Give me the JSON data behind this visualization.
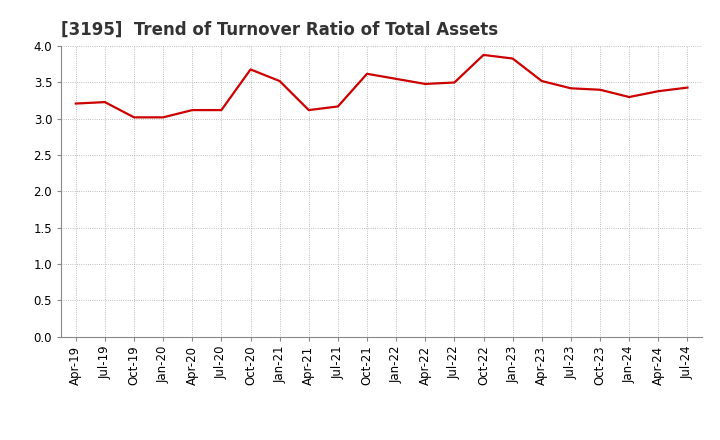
{
  "title": "[3195]  Trend of Turnover Ratio of Total Assets",
  "x_labels": [
    "Apr-19",
    "Jul-19",
    "Oct-19",
    "Jan-20",
    "Apr-20",
    "Jul-20",
    "Oct-20",
    "Jan-21",
    "Apr-21",
    "Jul-21",
    "Oct-21",
    "Jan-22",
    "Apr-22",
    "Jul-22",
    "Oct-22",
    "Jan-23",
    "Apr-23",
    "Jul-23",
    "Oct-23",
    "Jan-24",
    "Apr-24",
    "Jul-24"
  ],
  "y_values": [
    3.21,
    3.23,
    3.02,
    3.02,
    3.12,
    3.12,
    3.68,
    3.52,
    3.12,
    3.17,
    3.62,
    3.55,
    3.48,
    3.5,
    3.88,
    3.83,
    3.52,
    3.42,
    3.4,
    3.3,
    3.38,
    3.43
  ],
  "line_color": "#cc0000",
  "line_width": 1.6,
  "ylim": [
    0.0,
    4.0
  ],
  "yticks": [
    0.0,
    0.5,
    1.0,
    1.5,
    2.0,
    2.5,
    3.0,
    3.5,
    4.0
  ],
  "grid_color": "#aaaaaa",
  "background_color": "#ffffff",
  "title_fontsize": 12,
  "tick_fontsize": 8.5,
  "title_color": "#333333",
  "title_fontweight": "bold"
}
